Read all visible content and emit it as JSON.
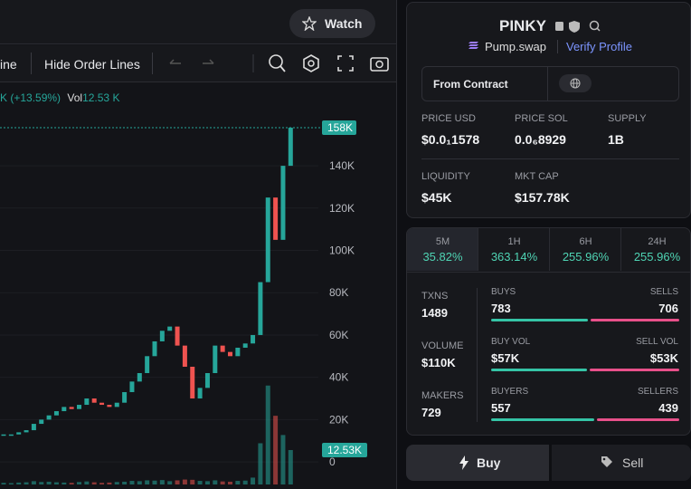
{
  "header": {
    "watch": "Watch"
  },
  "toolbar": {
    "line": "ine",
    "hide_order_lines": "Hide Order Lines"
  },
  "chart_data": {
    "type": "candlestick",
    "legend": {
      "change": "K (+13.59%)",
      "vol_label": "Vol",
      "vol_value": "12.53 K"
    },
    "closes": [
      13000,
      13000,
      14000,
      15000,
      18000,
      20000,
      22000,
      24000,
      26000,
      25000,
      27000,
      30000,
      28000,
      27000,
      26000,
      28000,
      33000,
      38000,
      42000,
      50000,
      57000,
      62000,
      64000,
      55000,
      45000,
      30000,
      35000,
      42000,
      55000,
      52000,
      50000,
      54000,
      56000,
      60000,
      85000,
      125000,
      105000,
      140000,
      158000
    ],
    "volumes": [
      600,
      500,
      700,
      800,
      1200,
      900,
      1000,
      800,
      700,
      600,
      900,
      1100,
      800,
      600,
      700,
      900,
      1000,
      1300,
      1200,
      1500,
      1400,
      1600,
      1200,
      1500,
      1800,
      1700,
      1300,
      1200,
      1500,
      1100,
      1000,
      1300,
      1400,
      2500,
      15000,
      36000,
      25000,
      18000,
      12530
    ],
    "ylim": [
      -12800,
      179000
    ],
    "yticks": [
      0,
      {
        "value": 20000,
        "label": "20K"
      },
      {
        "value": 40000,
        "label": "40K"
      },
      {
        "value": 60000,
        "label": "60K"
      },
      {
        "value": 80000,
        "label": "80K"
      },
      {
        "value": 100000,
        "label": "100K"
      },
      {
        "value": 120000,
        "label": "120K"
      },
      {
        "value": 140000,
        "label": "140K"
      }
    ],
    "vlim": [
      0,
      146000
    ],
    "last_price": {
      "value": 158000,
      "label": "158K"
    },
    "last_volume": {
      "value": 12530,
      "label": "12.53K"
    },
    "colors": {
      "up": "#26a69a",
      "down": "#ef5350"
    }
  },
  "token": {
    "name": "PINKY",
    "dex": "Pump.swap",
    "verify": "Verify Profile",
    "contract": "From Contract",
    "stats": [
      {
        "label": "PRICE USD",
        "value": "$0.0₁1578"
      },
      {
        "label": "PRICE SOL",
        "value": "0.0₆8929"
      },
      {
        "label": "SUPPLY",
        "value": "1B"
      },
      {
        "label": "LIQUIDITY",
        "value": "$45K"
      },
      {
        "label": "MKT CAP",
        "value": "$157.78K"
      }
    ]
  },
  "periods": [
    {
      "label": "5M",
      "value": "35.82%"
    },
    {
      "label": "1H",
      "value": "363.14%"
    },
    {
      "label": "6H",
      "value": "255.96%"
    },
    {
      "label": "24H",
      "value": "255.96%"
    }
  ],
  "activity": {
    "left": [
      {
        "label": "TXNS",
        "value": "1489"
      },
      {
        "label": "VOLUME",
        "value": "$110K"
      },
      {
        "label": "MAKERS",
        "value": "729"
      }
    ],
    "rows": [
      {
        "buy_label": "BUYS",
        "buy": 783,
        "sell_label": "SELLS",
        "sell": 706
      },
      {
        "buy_label": "BUY VOL",
        "buy": {
          "value": 57000,
          "label": "$57K"
        },
        "sell_label": "SELL VOL",
        "sell": {
          "value": 53000,
          "label": "$53K"
        }
      },
      {
        "buy_label": "BUYERS",
        "buy": 557,
        "sell_label": "SELLERS",
        "sell": 439
      }
    ]
  },
  "actions": {
    "buy": "Buy",
    "sell": "Sell"
  }
}
